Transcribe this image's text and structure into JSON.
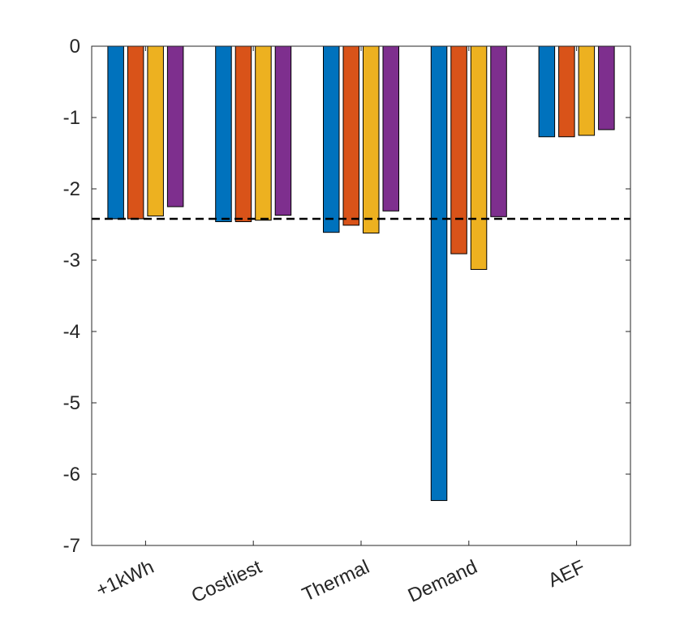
{
  "chart_data": {
    "type": "bar",
    "categories": [
      "+1kWh",
      "Costliest",
      "Thermal",
      "Demand",
      "AEF"
    ],
    "series": [
      {
        "color": "#0072BD",
        "values": [
          -2.42,
          -2.46,
          -2.61,
          -6.37,
          -1.27
        ]
      },
      {
        "color": "#D95319",
        "values": [
          -2.42,
          -2.46,
          -2.51,
          -2.91,
          -1.27
        ]
      },
      {
        "color": "#EDB120",
        "values": [
          -2.38,
          -2.44,
          -2.62,
          -3.13,
          -1.25
        ]
      },
      {
        "color": "#7E2F8E",
        "values": [
          -2.25,
          -2.37,
          -2.31,
          -2.39,
          -1.17
        ]
      }
    ],
    "ylim": [
      -7,
      0
    ],
    "yticks": [
      0,
      -1,
      -2,
      -3,
      -4,
      -5,
      -6,
      -7
    ],
    "reference_line": {
      "y": -2.42,
      "style": "dashed",
      "color": "#000000"
    },
    "title": "",
    "xlabel": "",
    "ylabel": "",
    "grid": false,
    "legend": "none"
  }
}
